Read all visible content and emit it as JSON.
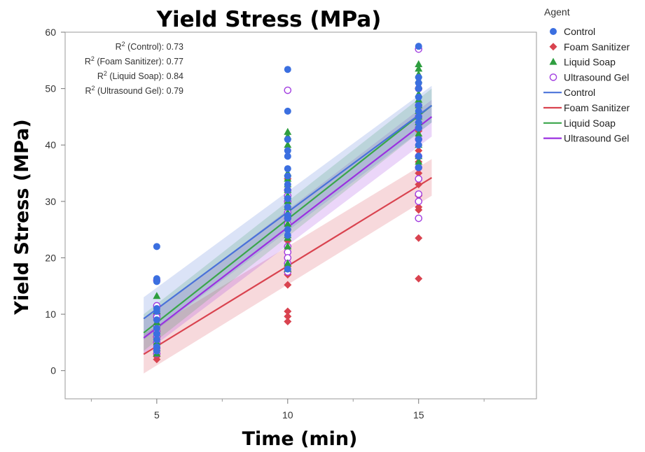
{
  "chart_data": {
    "type": "scatter",
    "title": "Yield Stress (MPa)",
    "xlabel": "Time (min)",
    "ylabel": "Yield Stress (MPa)",
    "xlim": [
      1.5,
      19.5
    ],
    "ylim": [
      -5,
      60
    ],
    "x_ticks": [
      5,
      10,
      15
    ],
    "y_ticks": [
      0,
      10,
      20,
      30,
      40,
      50,
      60
    ],
    "x_minor_ticks": [
      2.5,
      7.5,
      12.5,
      17.5
    ],
    "legend": {
      "title": "Agent",
      "position": "right",
      "markers": [
        {
          "label": "Control",
          "symbol": "circle",
          "color": "#3b6fe0"
        },
        {
          "label": "Foam Sanitizer",
          "symbol": "diamond",
          "color": "#d9434f"
        },
        {
          "label": "Liquid Soap",
          "symbol": "triangle",
          "color": "#2e9e3f"
        },
        {
          "label": "Ultrasound Gel",
          "symbol": "open-circle",
          "color": "#a23ee0"
        }
      ],
      "lines": [
        {
          "label": "Control",
          "color": "#4a72d9"
        },
        {
          "label": "Foam Sanitizer",
          "color": "#d9434f"
        },
        {
          "label": "Liquid Soap",
          "color": "#3aa64a"
        },
        {
          "label": "Ultrasound Gel",
          "color": "#9b30e0"
        }
      ]
    },
    "r2_labels": [
      {
        "prefix": "R",
        "sup": "2",
        "text": " (Control): 0.73"
      },
      {
        "prefix": "R",
        "sup": "2",
        "text": " (Foam Sanitizer): 0.77"
      },
      {
        "prefix": "R",
        "sup": "2",
        "text": " (Liquid Soap): 0.84"
      },
      {
        "prefix": "R",
        "sup": "2",
        "text": " (Ultrasound Gel): 0.79"
      }
    ],
    "fit_x_range": [
      4.5,
      15.5
    ],
    "series": [
      {
        "name": "Control",
        "symbol": "circle",
        "color": "#3b6fe0",
        "fit": {
          "x": [
            4.5,
            15.5
          ],
          "y": [
            9.2,
            47.0
          ],
          "ci_low_y": [
            5.5,
            44.0
          ],
          "ci_high_y": [
            13.0,
            50.5
          ]
        },
        "points": [
          [
            5,
            22
          ],
          [
            5,
            16.3
          ],
          [
            5,
            15.8
          ],
          [
            5,
            11
          ],
          [
            5,
            10.5
          ],
          [
            5,
            9
          ],
          [
            5,
            7.5
          ],
          [
            5,
            6.5
          ],
          [
            5,
            5.5
          ],
          [
            5,
            4.2
          ],
          [
            5,
            3.5
          ],
          [
            10,
            53.4
          ],
          [
            10,
            46
          ],
          [
            10,
            41
          ],
          [
            10,
            39
          ],
          [
            10,
            38
          ],
          [
            10,
            35.8
          ],
          [
            10,
            34.5
          ],
          [
            10,
            33
          ],
          [
            10,
            32
          ],
          [
            10,
            30.5
          ],
          [
            10,
            29
          ],
          [
            10,
            27.5
          ],
          [
            10,
            27
          ],
          [
            10,
            25
          ],
          [
            10,
            24
          ],
          [
            10,
            18
          ],
          [
            15,
            57.5
          ],
          [
            15,
            52
          ],
          [
            15,
            51
          ],
          [
            15,
            50
          ],
          [
            15,
            48.5
          ],
          [
            15,
            47
          ],
          [
            15,
            46
          ],
          [
            15,
            45
          ],
          [
            15,
            44
          ],
          [
            15,
            43
          ],
          [
            15,
            41
          ],
          [
            15,
            40
          ],
          [
            15,
            38
          ],
          [
            15,
            36
          ]
        ]
      },
      {
        "name": "Foam Sanitizer",
        "symbol": "diamond",
        "color": "#d9434f",
        "fit": {
          "x": [
            4.5,
            15.5
          ],
          "y": [
            2.9,
            34.2
          ],
          "ci_low_y": [
            -0.5,
            31.0
          ],
          "ci_high_y": [
            6.5,
            37.5
          ]
        },
        "points": [
          [
            5,
            2
          ],
          [
            5,
            2.5
          ],
          [
            5,
            3
          ],
          [
            5,
            3.5
          ],
          [
            5,
            4
          ],
          [
            5,
            5
          ],
          [
            5,
            6
          ],
          [
            5,
            7
          ],
          [
            5,
            8
          ],
          [
            5,
            9
          ],
          [
            10,
            8.7
          ],
          [
            10,
            9.6
          ],
          [
            10,
            10.5
          ],
          [
            10,
            15.2
          ],
          [
            10,
            17
          ],
          [
            10,
            18.5
          ],
          [
            10,
            20
          ],
          [
            10,
            21
          ],
          [
            10,
            22
          ],
          [
            10,
            23
          ],
          [
            10,
            25
          ],
          [
            10,
            27
          ],
          [
            10,
            29
          ],
          [
            10,
            31
          ],
          [
            10,
            32
          ],
          [
            10,
            34
          ],
          [
            15,
            16.3
          ],
          [
            15,
            23.5
          ],
          [
            15,
            27
          ],
          [
            15,
            28.5
          ],
          [
            15,
            29
          ],
          [
            15,
            31
          ],
          [
            15,
            33
          ],
          [
            15,
            35
          ],
          [
            15,
            36
          ],
          [
            15,
            37
          ],
          [
            15,
            39
          ],
          [
            15,
            40
          ],
          [
            15,
            42.5
          ],
          [
            15,
            44
          ]
        ]
      },
      {
        "name": "Liquid Soap",
        "symbol": "triangle",
        "color": "#2e9e3f",
        "fit": {
          "x": [
            4.5,
            15.5
          ],
          "y": [
            6.7,
            47.0
          ],
          "ci_low_y": [
            3.5,
            44.0
          ],
          "ci_high_y": [
            10.0,
            50.0
          ]
        },
        "points": [
          [
            5,
            13.2
          ],
          [
            5,
            10.5
          ],
          [
            5,
            8.5
          ],
          [
            5,
            7
          ],
          [
            5,
            6
          ],
          [
            5,
            5
          ],
          [
            5,
            4
          ],
          [
            5,
            3
          ],
          [
            10,
            42.3
          ],
          [
            10,
            41.5
          ],
          [
            10,
            40
          ],
          [
            10,
            35
          ],
          [
            10,
            34
          ],
          [
            10,
            33
          ],
          [
            10,
            32
          ],
          [
            10,
            31
          ],
          [
            10,
            30
          ],
          [
            10,
            29
          ],
          [
            10,
            28
          ],
          [
            10,
            26
          ],
          [
            10,
            24
          ],
          [
            10,
            23.5
          ],
          [
            10,
            22
          ],
          [
            10,
            19
          ],
          [
            10,
            18
          ],
          [
            15,
            54.3
          ],
          [
            15,
            53.5
          ],
          [
            15,
            52.5
          ],
          [
            15,
            51.5
          ],
          [
            15,
            50.5
          ],
          [
            15,
            49
          ],
          [
            15,
            48
          ],
          [
            15,
            47
          ],
          [
            15,
            46
          ],
          [
            15,
            45
          ],
          [
            15,
            44
          ],
          [
            15,
            42
          ],
          [
            15,
            40
          ],
          [
            15,
            38
          ],
          [
            15,
            37
          ]
        ]
      },
      {
        "name": "Ultrasound Gel",
        "symbol": "open-circle",
        "color": "#a23ee0",
        "fit": {
          "x": [
            4.5,
            15.5
          ],
          "y": [
            5.8,
            45.0
          ],
          "ci_low_y": [
            3.0,
            41.5
          ],
          "ci_high_y": [
            9.0,
            48.0
          ]
        },
        "points": [
          [
            5,
            16
          ],
          [
            5,
            11.5
          ],
          [
            5,
            10
          ],
          [
            5,
            9.5
          ],
          [
            5,
            8
          ],
          [
            5,
            7
          ],
          [
            5,
            6
          ],
          [
            5,
            5
          ],
          [
            5,
            4
          ],
          [
            5,
            3
          ],
          [
            10,
            49.7
          ],
          [
            10,
            32
          ],
          [
            10,
            31
          ],
          [
            10,
            30
          ],
          [
            10,
            28
          ],
          [
            10,
            27
          ],
          [
            10,
            26
          ],
          [
            10,
            22
          ],
          [
            10,
            21
          ],
          [
            10,
            20
          ],
          [
            10,
            19
          ],
          [
            10,
            17.5
          ],
          [
            15,
            57
          ],
          [
            15,
            50
          ],
          [
            15,
            47
          ],
          [
            15,
            45
          ],
          [
            15,
            43
          ],
          [
            15,
            41
          ],
          [
            15,
            38
          ],
          [
            15,
            36
          ],
          [
            15,
            34
          ],
          [
            15,
            31.3
          ],
          [
            15,
            30
          ],
          [
            15,
            27
          ]
        ]
      }
    ]
  }
}
